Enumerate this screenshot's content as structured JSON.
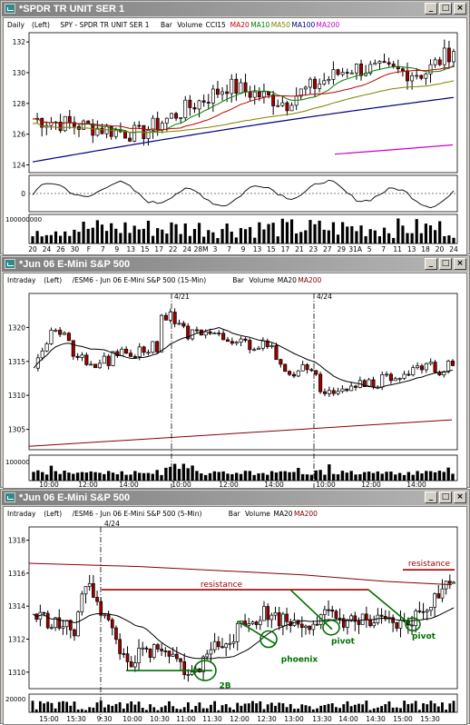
{
  "windows": [
    {
      "title": "*SPDR TR UNIT SER 1",
      "header": {
        "period": "Daily",
        "scale": "(Left)",
        "symbol": "SPY - SPDR TR UNIT SER 1",
        "chart_style": "Bar",
        "volume": "Volume",
        "cci": "CCI15",
        "ma_labels": [
          {
            "text": "MA20",
            "color": "#c00000"
          },
          {
            "text": "MA10",
            "color": "#008000"
          },
          {
            "text": "MA50",
            "color": "#808000"
          },
          {
            "text": "MA100",
            "color": "#000080"
          },
          {
            "text": "MA200",
            "color": "#cc00cc"
          }
        ]
      },
      "y_ticks": [
        "132",
        "130",
        "128",
        "126",
        "124"
      ],
      "cci_tick": "0",
      "volume_tick": "100000000",
      "x_ticks": [
        "20",
        "24",
        "26",
        "30",
        "F",
        "7",
        "9",
        "13",
        "15",
        "17",
        "22",
        "24",
        "28M",
        "3",
        "7",
        "9",
        "13",
        "15",
        "17",
        "21",
        "23",
        "27",
        "29",
        "31A",
        "5",
        "7",
        "11",
        "13",
        "18",
        "20",
        "24"
      ]
    },
    {
      "title": "*Jun 06  E-Mini S&P 500",
      "header": {
        "period": "Intraday",
        "scale": "(Left)",
        "symbol": "/ESM6 - Jun 06  E-Mini S&P 500 (15-Min)",
        "chart_style": "Bar",
        "volume": "Volume",
        "ma_labels": [
          {
            "text": "MA20",
            "color": "#000000"
          },
          {
            "text": "MA200",
            "color": "#800000"
          }
        ]
      },
      "date_markers": [
        "4/21",
        "4/24"
      ],
      "y_ticks": [
        "1320",
        "1315",
        "1310",
        "1305"
      ],
      "volume_tick": "100000",
      "x_ticks": [
        "10:00",
        "12:00",
        "14:00",
        "10:00",
        "12:00",
        "14:00",
        "10:00",
        "12:00",
        "14:00"
      ]
    },
    {
      "title": "*Jun 06  E-Mini S&P 500",
      "header": {
        "period": "Intraday",
        "scale": "(Left)",
        "symbol": "/ESM6 - Jun 06  E-Mini S&P 500 (5-Min)",
        "chart_style": "Bar",
        "volume": "Volume",
        "ma_labels": [
          {
            "text": "MA20",
            "color": "#000000"
          },
          {
            "text": "MA200",
            "color": "#800000"
          }
        ]
      },
      "date_marker": "4/24",
      "y_ticks": [
        "1318",
        "1316",
        "1314",
        "1312",
        "1310"
      ],
      "volume_tick": "20000",
      "x_ticks": [
        "15:00",
        "15:30",
        "9:30",
        "10:00",
        "10:30",
        "11:00",
        "11:30",
        "12:00",
        "12:30",
        "13:00",
        "13:30",
        "14:00",
        "14:30",
        "15:00",
        "15:30"
      ],
      "annotations": [
        {
          "text": "resistance",
          "color": "#a00000"
        },
        {
          "text": "resistance",
          "color": "#a00000"
        },
        {
          "text": "2B",
          "color": "#007000"
        },
        {
          "text": "phoenix",
          "color": "#007000"
        },
        {
          "text": "pivot",
          "color": "#007000"
        },
        {
          "text": "pivot",
          "color": "#007000"
        }
      ]
    }
  ],
  "window_buttons": {
    "minimize": "_",
    "maximize": "□",
    "close": "×"
  }
}
